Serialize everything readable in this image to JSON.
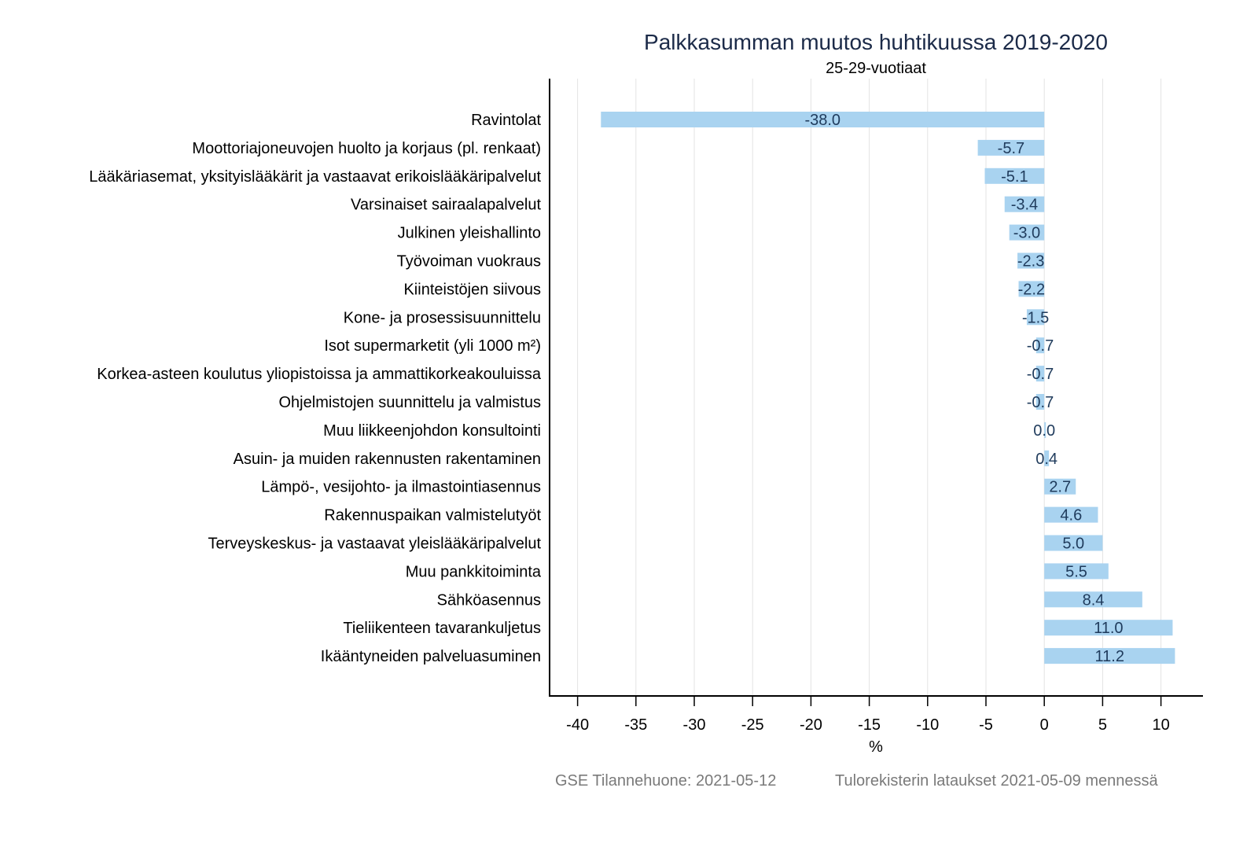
{
  "chart_data": {
    "type": "bar",
    "orientation": "horizontal",
    "title": "Palkkasumman muutos huhtikuussa 2019-2020",
    "subtitle": "25-29-vuotiaat",
    "xlabel": "%",
    "ylabel": "",
    "xlim": [
      -42.4,
      13.6
    ],
    "xticks": [
      -40,
      -35,
      -30,
      -25,
      -20,
      -15,
      -10,
      -5,
      0,
      5,
      10
    ],
    "grid": true,
    "bar_color": "#a9d3f0",
    "label_color": "#1f3b5c",
    "categories": [
      "Ravintolat",
      "Moottoriajoneuvojen huolto ja korjaus (pl. renkaat)",
      "Lääkäriasemat, yksityislääkärit ja vastaavat erikoislääkäripalvelut",
      "Varsinaiset sairaalapalvelut",
      "Julkinen yleishallinto",
      "Työvoiman vuokraus",
      "Kiinteistöjen siivous",
      "Kone- ja prosessisuunnittelu",
      "Isot supermarketit (yli 1000 m²)",
      "Korkea-asteen koulutus yliopistoissa ja ammattikorkeakouluissa",
      "Ohjelmistojen suunnittelu ja valmistus",
      "Muu liikkeenjohdon konsultointi",
      "Asuin- ja muiden rakennusten rakentaminen",
      "Lämpö-, vesijohto- ja ilmastointiasennus",
      "Rakennuspaikan valmistelutyöt",
      "Terveyskeskus- ja vastaavat yleislääkäripalvelut",
      "Muu pankkitoiminta",
      "Sähköasennus",
      "Tieliikenteen tavarankuljetus",
      "Ikääntyneiden palveluasuminen"
    ],
    "values": [
      -38.0,
      -5.7,
      -5.1,
      -3.4,
      -3.0,
      -2.3,
      -2.2,
      -1.5,
      -0.7,
      -0.7,
      -0.7,
      0.0,
      0.4,
      2.7,
      4.6,
      5.0,
      5.5,
      8.4,
      11.0,
      11.2
    ],
    "value_labels": [
      "-38.0",
      "-5.7",
      "-5.1",
      "-3.4",
      "-3.0",
      "-2.3",
      "-2.2",
      "-1.5",
      "-0.7",
      "-0.7",
      "-0.7",
      "0.0",
      "0.4",
      "2.7",
      "4.6",
      "5.0",
      "5.5",
      "8.4",
      "11.0",
      "11.2"
    ]
  },
  "footer": {
    "source": "GSE Tilannehuone: 2021-05-12",
    "note": "Tulorekisterin lataukset 2021-05-09 mennessä"
  }
}
